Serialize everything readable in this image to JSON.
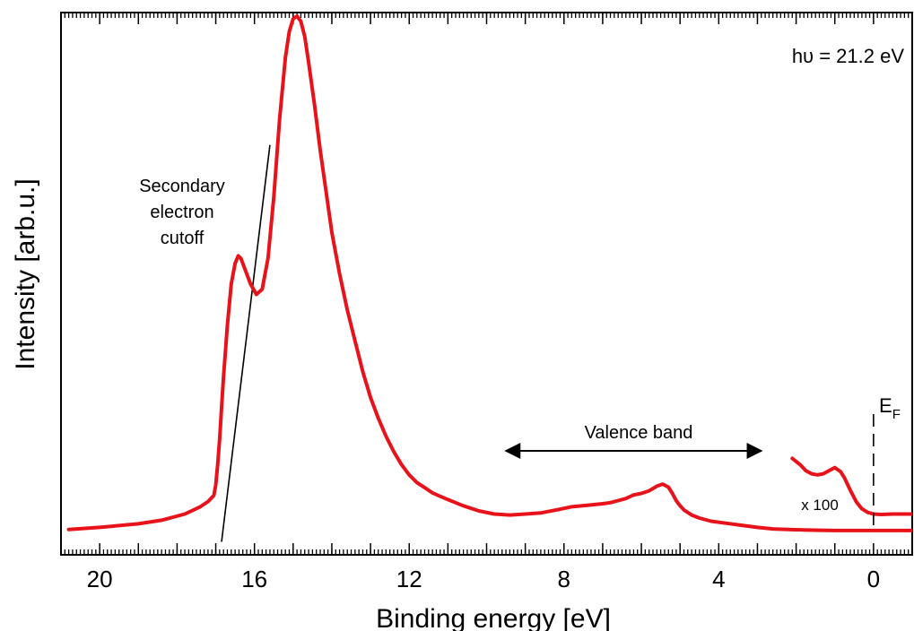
{
  "chart_data": {
    "type": "line",
    "title": "",
    "xlabel": "Binding energy [eV]",
    "ylabel": "Intensity [arb.u.]",
    "xlim": [
      21,
      -1
    ],
    "x_reversed": true,
    "ylim": [
      0,
      100
    ],
    "y_ticks_shown": false,
    "x_ticks": [
      20,
      16,
      12,
      8,
      4,
      0
    ],
    "x_tick_labels": [
      "20",
      "16",
      "12",
      "8",
      "4",
      "0"
    ],
    "series": [
      {
        "color": "#e8121a",
        "x": [
          20.8,
          20,
          19,
          18.4,
          17.8,
          17.4,
          17.2,
          17.05,
          17.0,
          16.95,
          16.9,
          16.85,
          16.8,
          16.7,
          16.6,
          16.5,
          16.42,
          16.35,
          16.25,
          16.1,
          15.95,
          15.8,
          15.65,
          15.5,
          15.35,
          15.2,
          15.1,
          15.0,
          14.9,
          14.8,
          14.7,
          14.6,
          14.45,
          14.3,
          14.15,
          14.0,
          13.8,
          13.6,
          13.4,
          13.2,
          13.0,
          12.8,
          12.6,
          12.4,
          12.2,
          12.0,
          11.8,
          11.6,
          11.4,
          11.0,
          10.6,
          10.2,
          9.8,
          9.4,
          9.0,
          8.6,
          8.2,
          7.8,
          7.4,
          7.0,
          6.8,
          6.6,
          6.4,
          6.2,
          6.0,
          5.8,
          5.6,
          5.45,
          5.3,
          5.2,
          5.1,
          5.0,
          4.9,
          4.7,
          4.5,
          4.2,
          3.8,
          3.4,
          3.0,
          2.6,
          2.2,
          1.8,
          1.4,
          1.0,
          0.6,
          0.2,
          0.0,
          -0.5,
          -1.0
        ],
        "y": [
          0.4,
          0.8,
          1.5,
          2.2,
          3.4,
          4.8,
          5.8,
          7.0,
          9.0,
          13.0,
          18.0,
          24.0,
          30.0,
          40.0,
          48.0,
          52.0,
          53.5,
          53.0,
          51.0,
          48.0,
          46.0,
          47.0,
          53.0,
          65.0,
          80.0,
          92.0,
          97.0,
          99.5,
          100.0,
          99.0,
          96.0,
          91.0,
          83.0,
          74.0,
          66.0,
          58.0,
          50.0,
          43.0,
          37.0,
          31.0,
          26.0,
          22.0,
          18.5,
          15.5,
          13.0,
          11.0,
          9.5,
          8.5,
          7.5,
          6.2,
          5.0,
          4.0,
          3.4,
          3.2,
          3.4,
          3.6,
          4.2,
          4.8,
          5.1,
          5.4,
          5.6,
          6.0,
          6.4,
          7.1,
          7.4,
          7.9,
          8.8,
          9.2,
          8.6,
          7.4,
          6.0,
          5.0,
          4.2,
          3.2,
          2.6,
          2.0,
          1.6,
          1.2,
          0.8,
          0.5,
          0.4,
          0.3,
          0.25,
          0.2,
          0.2,
          0.2,
          0.2,
          0.2,
          0.2
        ]
      },
      {
        "label": "x 100",
        "color": "#e8121a",
        "x": [
          2.1,
          1.9,
          1.75,
          1.6,
          1.45,
          1.3,
          1.15,
          1.0,
          0.85,
          0.75,
          0.6,
          0.45,
          0.3,
          0.15,
          0.0,
          -0.2,
          -0.5,
          -1.0
        ],
        "y": [
          14.2,
          13.0,
          11.8,
          11.2,
          11.0,
          11.2,
          11.8,
          12.4,
          11.6,
          10.4,
          8.0,
          5.8,
          4.4,
          3.7,
          3.4,
          3.3,
          3.4,
          3.4
        ]
      }
    ],
    "tangent_line": {
      "x": [
        16.85,
        15.6
      ],
      "y": [
        -2,
        75
      ]
    },
    "fermi_marker": {
      "x": 0,
      "label_main": "E",
      "label_sub": "F"
    },
    "valence_band_arrow": {
      "x_start": 9.5,
      "x_end": 2.9,
      "y": 15,
      "label": "Valence band"
    },
    "annotations": {
      "secondary_line1": "Secondary",
      "secondary_line2": "electron",
      "secondary_line3": "cutoff",
      "photon_energy": "hυ = 21.2 eV",
      "scale_label": "x 100"
    }
  }
}
